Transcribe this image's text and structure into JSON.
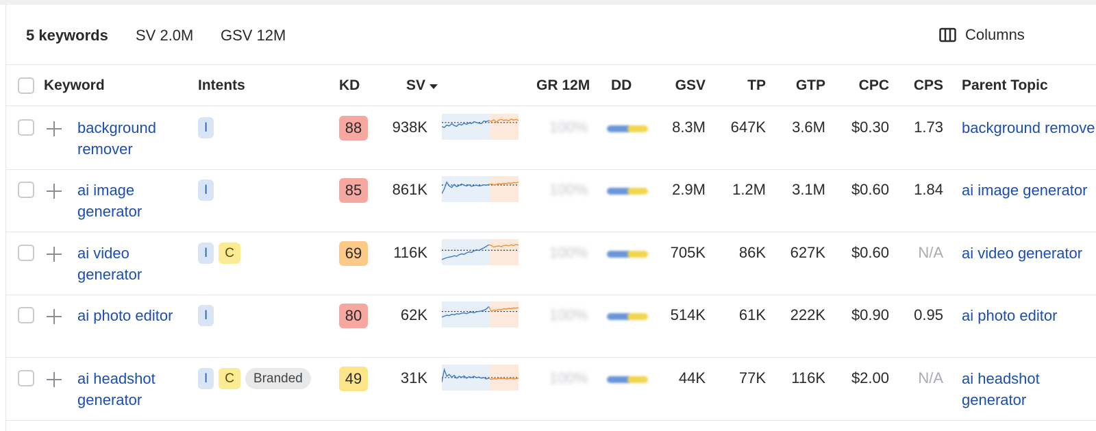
{
  "summary": {
    "keywords_count": "5 keywords",
    "sv": "SV 2.0M",
    "gsv": "GSV 12M",
    "columns_label": "Columns"
  },
  "columns": {
    "keyword": "Keyword",
    "intents": "Intents",
    "kd": "KD",
    "sv": "SV",
    "gr12m": "GR 12M",
    "dd": "DD",
    "gsv": "GSV",
    "tp": "TP",
    "gtp": "GTP",
    "cpc": "CPC",
    "cps": "CPS",
    "parent_topic": "Parent Topic"
  },
  "colors": {
    "kd_red": "#f6a7a0",
    "kd_orange": "#fcc987",
    "kd_yellow": "#fce48a",
    "link": "#1c4eb0"
  },
  "rows": [
    {
      "keyword": "background remover",
      "intents": [
        "I"
      ],
      "kd": "88",
      "kd_color": "#f6a7a0",
      "sv": "938K",
      "gr12m": "100%",
      "gsv": "8.3M",
      "tp": "647K",
      "gtp": "3.6M",
      "cpc": "$0.30",
      "cps": "1.73",
      "parent_topic": "background remover",
      "trend": [
        0.55,
        0.5,
        0.62,
        0.58,
        0.7,
        0.6,
        0.56,
        0.68,
        0.62,
        0.72,
        0.66,
        0.74,
        0.7,
        0.8,
        0.76,
        0.72,
        0.7,
        0.84,
        0.8,
        0.86,
        0.82,
        0.9,
        0.78,
        0.88,
        0.92,
        0.86,
        0.9,
        0.84,
        0.94,
        0.88,
        0.92,
        0.86
      ]
    },
    {
      "keyword": "ai image generator",
      "intents": [
        "I"
      ],
      "kd": "85",
      "kd_color": "#f6a7a0",
      "sv": "861K",
      "gr12m": "100%",
      "gsv": "2.9M",
      "tp": "1.2M",
      "gtp": "3.1M",
      "cpc": "$0.60",
      "cps": "1.84",
      "parent_topic": "ai image generator",
      "trend": [
        0.3,
        0.55,
        0.9,
        0.7,
        0.62,
        0.78,
        0.66,
        0.72,
        0.8,
        0.74,
        0.7,
        0.76,
        0.68,
        0.72,
        0.74,
        0.7,
        0.72,
        0.76,
        0.74,
        0.78,
        0.8,
        0.76,
        0.78,
        0.82,
        0.8,
        0.84,
        0.82,
        0.86,
        0.84,
        0.88,
        0.86,
        0.9
      ]
    },
    {
      "keyword": "ai video generator",
      "intents": [
        "I",
        "C"
      ],
      "kd": "69",
      "kd_color": "#fcc987",
      "sv": "116K",
      "gr12m": "100%",
      "gsv": "705K",
      "tp": "86K",
      "gtp": "627K",
      "cpc": "$0.60",
      "cps": "N/A",
      "parent_topic": "ai video generator",
      "trend": [
        0.15,
        0.2,
        0.25,
        0.28,
        0.3,
        0.35,
        0.32,
        0.4,
        0.45,
        0.42,
        0.5,
        0.55,
        0.52,
        0.6,
        0.66,
        0.62,
        0.7,
        0.76,
        0.84,
        0.92,
        0.88,
        0.8,
        0.84,
        0.86,
        0.82,
        0.88,
        0.9,
        0.86,
        0.92,
        0.88,
        0.94,
        0.9
      ]
    },
    {
      "keyword": "ai photo editor",
      "intents": [
        "I"
      ],
      "kd": "80",
      "kd_color": "#f6a7a0",
      "sv": "62K",
      "gr12m": "100%",
      "gsv": "514K",
      "tp": "61K",
      "gtp": "222K",
      "cpc": "$0.90",
      "cps": "0.95",
      "parent_topic": "ai photo editor",
      "trend": [
        0.4,
        0.45,
        0.5,
        0.48,
        0.55,
        0.52,
        0.58,
        0.56,
        0.6,
        0.62,
        0.58,
        0.64,
        0.66,
        0.62,
        0.68,
        0.7,
        0.72,
        0.76,
        0.82,
        0.95,
        0.7,
        0.78,
        0.74,
        0.8,
        0.78,
        0.84,
        0.82,
        0.86,
        0.84,
        0.88,
        0.86,
        0.9
      ]
    },
    {
      "keyword": "ai headshot generator",
      "intents": [
        "I",
        "C",
        "Branded"
      ],
      "kd": "49",
      "kd_color": "#fce48a",
      "sv": "31K",
      "gr12m": "100%",
      "gsv": "44K",
      "tp": "77K",
      "gtp": "116K",
      "cpc": "$2.00",
      "cps": "N/A",
      "parent_topic": "ai headshot generator",
      "trend": [
        0.3,
        0.95,
        0.6,
        0.7,
        0.55,
        0.65,
        0.5,
        0.6,
        0.55,
        0.62,
        0.5,
        0.58,
        0.54,
        0.6,
        0.52,
        0.56,
        0.5,
        0.54,
        0.46,
        0.5,
        0.44,
        0.48,
        0.46,
        0.5,
        0.48,
        0.5,
        0.46,
        0.48,
        0.5,
        0.46,
        0.48,
        0.5
      ]
    }
  ]
}
